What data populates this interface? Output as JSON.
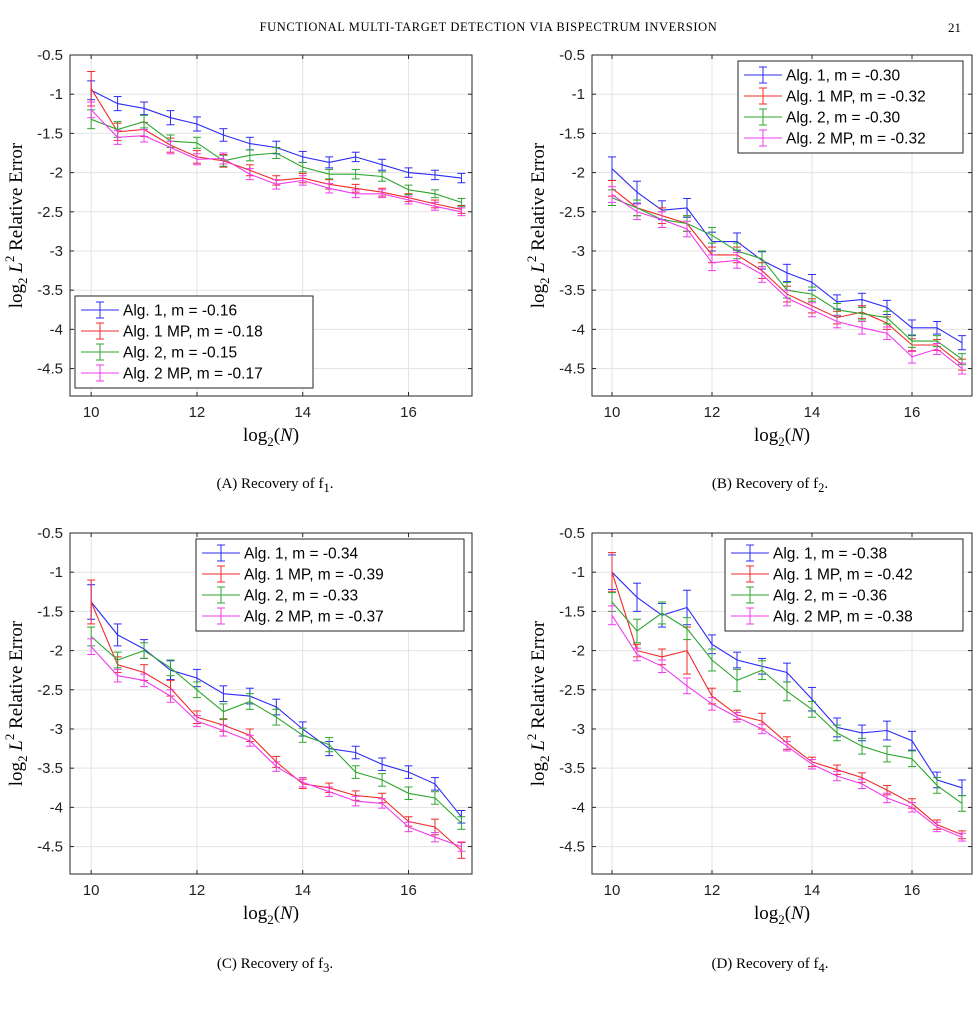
{
  "header": {
    "running_title": "FUNCTIONAL MULTI-TARGET DETECTION VIA BISPECTRUM INVERSION",
    "page_number": "21"
  },
  "colors": {
    "alg1": "#2b2bf5",
    "alg1_mp": "#f02a2a",
    "alg2": "#2ea62e",
    "alg2_mp": "#ee3cee"
  },
  "chart_data": [
    {
      "type": "line",
      "caption_letter": "(A)",
      "caption_text": "Recovery of f",
      "caption_sub": "1",
      "xlabel": "log2(N)",
      "ylabel": "log2 L2 Relative Error",
      "x": [
        10,
        10.5,
        11,
        11.5,
        12,
        12.5,
        13,
        13.5,
        14,
        14.5,
        15,
        15.5,
        16,
        16.5,
        17
      ],
      "xlim": [
        9.6,
        17.2
      ],
      "ylim": [
        -4.85,
        -0.5
      ],
      "xticks": [
        10,
        12,
        14,
        16
      ],
      "yticks": [
        -0.5,
        -1,
        -1.5,
        -2,
        -2.5,
        -3,
        -3.5,
        -4,
        -4.5
      ],
      "grid": true,
      "legend_position": "bottom-left",
      "series": [
        {
          "name": "Alg. 1,  m = -0.16",
          "color": "#2b2bf5",
          "values": [
            -0.95,
            -1.12,
            -1.18,
            -1.3,
            -1.38,
            -1.52,
            -1.63,
            -1.68,
            -1.8,
            -1.87,
            -1.8,
            -1.9,
            -2.0,
            -2.03,
            -2.07
          ],
          "errors": [
            0.12,
            0.09,
            0.08,
            0.09,
            0.09,
            0.08,
            0.08,
            0.08,
            0.07,
            0.07,
            0.06,
            0.07,
            0.06,
            0.06,
            0.06
          ]
        },
        {
          "name": "Alg. 1 MP,  m = -0.18",
          "color": "#f02a2a",
          "values": [
            -0.93,
            -1.48,
            -1.45,
            -1.65,
            -1.8,
            -1.85,
            -1.97,
            -2.1,
            -2.07,
            -2.15,
            -2.2,
            -2.25,
            -2.32,
            -2.4,
            -2.47
          ],
          "errors": [
            0.22,
            0.11,
            0.09,
            0.09,
            0.08,
            0.08,
            0.07,
            0.06,
            0.06,
            0.06,
            0.05,
            0.05,
            0.05,
            0.05,
            0.05
          ]
        },
        {
          "name": "Alg. 2,  m = -0.15",
          "color": "#2ea62e",
          "values": [
            -1.32,
            -1.45,
            -1.35,
            -1.6,
            -1.62,
            -1.85,
            -1.78,
            -1.75,
            -1.93,
            -2.02,
            -2.02,
            -2.05,
            -2.22,
            -2.27,
            -2.38
          ],
          "errors": [
            0.12,
            0.1,
            0.08,
            0.08,
            0.07,
            0.07,
            0.07,
            0.07,
            0.06,
            0.06,
            0.06,
            0.06,
            0.06,
            0.05,
            0.05
          ]
        },
        {
          "name": "Alg. 2 MP,  m = -0.17",
          "color": "#ee3cee",
          "values": [
            -1.2,
            -1.55,
            -1.53,
            -1.68,
            -1.83,
            -1.82,
            -2.02,
            -2.15,
            -2.1,
            -2.2,
            -2.27,
            -2.27,
            -2.35,
            -2.43,
            -2.5
          ],
          "errors": [
            0.1,
            0.09,
            0.08,
            0.08,
            0.07,
            0.07,
            0.07,
            0.06,
            0.06,
            0.06,
            0.05,
            0.05,
            0.05,
            0.05,
            0.05
          ]
        }
      ]
    },
    {
      "type": "line",
      "caption_letter": "(B)",
      "caption_text": "Recovery of f",
      "caption_sub": "2",
      "xlabel": "log2(N)",
      "ylabel": "log2 L2 Relative Error",
      "x": [
        10,
        10.5,
        11,
        11.5,
        12,
        12.5,
        13,
        13.5,
        14,
        14.5,
        15,
        15.5,
        16,
        16.5,
        17
      ],
      "xlim": [
        9.6,
        17.2
      ],
      "ylim": [
        -4.85,
        -0.5
      ],
      "xticks": [
        10,
        12,
        14,
        16
      ],
      "yticks": [
        -0.5,
        -1,
        -1.5,
        -2,
        -2.5,
        -3,
        -3.5,
        -4,
        -4.5
      ],
      "grid": true,
      "legend_position": "top-right",
      "series": [
        {
          "name": "Alg. 1,  m = -0.30",
          "color": "#2b2bf5",
          "values": [
            -1.95,
            -2.25,
            -2.48,
            -2.45,
            -2.88,
            -2.88,
            -3.12,
            -3.28,
            -3.4,
            -3.65,
            -3.62,
            -3.72,
            -3.98,
            -3.98,
            -4.17
          ],
          "errors": [
            0.15,
            0.14,
            0.12,
            0.12,
            0.12,
            0.11,
            0.11,
            0.11,
            0.1,
            0.09,
            0.08,
            0.09,
            0.1,
            0.08,
            0.09
          ]
        },
        {
          "name": "Alg. 1 MP,  m = -0.32",
          "color": "#f02a2a",
          "values": [
            -2.2,
            -2.45,
            -2.55,
            -2.65,
            -3.05,
            -3.05,
            -3.25,
            -3.55,
            -3.7,
            -3.85,
            -3.78,
            -3.92,
            -4.2,
            -4.2,
            -4.45
          ],
          "errors": [
            0.1,
            0.1,
            0.1,
            0.1,
            0.1,
            0.1,
            0.1,
            0.1,
            0.09,
            0.08,
            0.08,
            0.08,
            0.08,
            0.07,
            0.07
          ]
        },
        {
          "name": "Alg. 2,  m = -0.30",
          "color": "#2ea62e",
          "values": [
            -2.32,
            -2.45,
            -2.6,
            -2.65,
            -2.8,
            -3.0,
            -3.1,
            -3.5,
            -3.55,
            -3.75,
            -3.8,
            -3.85,
            -4.15,
            -4.15,
            -4.38
          ],
          "errors": [
            0.1,
            0.1,
            0.1,
            0.1,
            0.1,
            0.1,
            0.1,
            0.1,
            0.09,
            0.08,
            0.08,
            0.08,
            0.08,
            0.07,
            0.07
          ]
        },
        {
          "name": "Alg. 2 MP,  m = -0.32",
          "color": "#ee3cee",
          "values": [
            -2.28,
            -2.5,
            -2.6,
            -2.72,
            -3.15,
            -3.12,
            -3.3,
            -3.6,
            -3.75,
            -3.9,
            -3.98,
            -4.05,
            -4.35,
            -4.25,
            -4.5
          ],
          "errors": [
            0.1,
            0.1,
            0.1,
            0.1,
            0.1,
            0.1,
            0.1,
            0.1,
            0.09,
            0.08,
            0.08,
            0.08,
            0.08,
            0.07,
            0.07
          ]
        }
      ]
    },
    {
      "type": "line",
      "caption_letter": "(C)",
      "caption_text": "Recovery of f",
      "caption_sub": "3",
      "xlabel": "log2(N)",
      "ylabel": "log2 L2 Relative Error",
      "x": [
        10,
        10.5,
        11,
        11.5,
        12,
        12.5,
        13,
        13.5,
        14,
        14.5,
        15,
        15.5,
        16,
        16.5,
        17
      ],
      "xlim": [
        9.6,
        17.2
      ],
      "ylim": [
        -4.85,
        -0.5
      ],
      "xticks": [
        10,
        12,
        14,
        16
      ],
      "yticks": [
        -0.5,
        -1,
        -1.5,
        -2,
        -2.5,
        -3,
        -3.5,
        -4,
        -4.5
      ],
      "grid": true,
      "legend_position": "top-right",
      "series": [
        {
          "name": "Alg. 1,  m = -0.34",
          "color": "#2b2bf5",
          "values": [
            -1.38,
            -1.8,
            -1.98,
            -2.25,
            -2.35,
            -2.55,
            -2.58,
            -2.72,
            -3.0,
            -3.25,
            -3.3,
            -3.45,
            -3.55,
            -3.7,
            -4.12
          ],
          "errors": [
            0.22,
            0.14,
            0.12,
            0.12,
            0.11,
            0.1,
            0.1,
            0.1,
            0.09,
            0.09,
            0.08,
            0.08,
            0.08,
            0.08,
            0.08
          ]
        },
        {
          "name": "Alg. 1 MP,  m = -0.39",
          "color": "#f02a2a",
          "values": [
            -1.38,
            -2.18,
            -2.28,
            -2.48,
            -2.85,
            -2.95,
            -3.08,
            -3.42,
            -3.7,
            -3.75,
            -3.85,
            -3.88,
            -4.18,
            -4.25,
            -4.55
          ],
          "errors": [
            0.28,
            0.1,
            0.1,
            0.1,
            0.08,
            0.08,
            0.08,
            0.07,
            0.06,
            0.06,
            0.06,
            0.06,
            0.06,
            0.1,
            0.1
          ]
        },
        {
          "name": "Alg. 2,  m = -0.33",
          "color": "#2ea62e",
          "values": [
            -1.82,
            -2.12,
            -2.0,
            -2.22,
            -2.5,
            -2.78,
            -2.65,
            -2.85,
            -3.08,
            -3.2,
            -3.55,
            -3.65,
            -3.82,
            -3.88,
            -4.2
          ],
          "errors": [
            0.12,
            0.1,
            0.1,
            0.1,
            0.1,
            0.1,
            0.1,
            0.1,
            0.09,
            0.09,
            0.08,
            0.08,
            0.08,
            0.08,
            0.08
          ]
        },
        {
          "name": "Alg. 2 MP,  m = -0.37",
          "color": "#ee3cee",
          "values": [
            -1.95,
            -2.32,
            -2.38,
            -2.58,
            -2.9,
            -3.02,
            -3.15,
            -3.48,
            -3.68,
            -3.8,
            -3.92,
            -3.95,
            -4.25,
            -4.38,
            -4.5
          ],
          "errors": [
            0.1,
            0.08,
            0.08,
            0.08,
            0.07,
            0.07,
            0.07,
            0.06,
            0.06,
            0.06,
            0.06,
            0.06,
            0.06,
            0.06,
            0.06
          ]
        }
      ]
    },
    {
      "type": "line",
      "caption_letter": "(D)",
      "caption_text": "Recovery of f",
      "caption_sub": "4",
      "xlabel": "log2(N)",
      "ylabel": "log2 L2 Relative Error",
      "x": [
        10,
        10.5,
        11,
        11.5,
        12,
        12.5,
        13,
        13.5,
        14,
        14.5,
        15,
        15.5,
        16,
        16.5,
        17
      ],
      "xlim": [
        9.6,
        17.2
      ],
      "ylim": [
        -4.85,
        -0.5
      ],
      "xticks": [
        10,
        12,
        14,
        16
      ],
      "yticks": [
        -0.5,
        -1,
        -1.5,
        -2,
        -2.5,
        -3,
        -3.5,
        -4,
        -4.5
      ],
      "grid": true,
      "legend_position": "top-right",
      "series": [
        {
          "name": "Alg. 1,  m = -0.38",
          "color": "#2b2bf5",
          "values": [
            -1.0,
            -1.32,
            -1.55,
            -1.45,
            -1.92,
            -2.12,
            -2.2,
            -2.28,
            -2.62,
            -2.98,
            -3.05,
            -3.02,
            -3.15,
            -3.65,
            -3.75
          ],
          "errors": [
            0.22,
            0.18,
            0.15,
            0.22,
            0.12,
            0.1,
            0.1,
            0.12,
            0.15,
            0.12,
            0.1,
            0.12,
            0.12,
            0.1,
            0.1
          ]
        },
        {
          "name": "Alg. 1 MP,  m = -0.42",
          "color": "#f02a2a",
          "values": [
            -1.0,
            -2.0,
            -2.08,
            -2.0,
            -2.58,
            -2.82,
            -2.9,
            -3.18,
            -3.42,
            -3.52,
            -3.62,
            -3.78,
            -3.95,
            -4.22,
            -4.35
          ],
          "errors": [
            0.25,
            0.08,
            0.1,
            0.3,
            0.1,
            0.06,
            0.1,
            0.08,
            0.06,
            0.06,
            0.06,
            0.06,
            0.06,
            0.06,
            0.05
          ]
        },
        {
          "name": "Alg. 2,  m = -0.36",
          "color": "#2ea62e",
          "values": [
            -1.38,
            -1.75,
            -1.52,
            -1.72,
            -2.12,
            -2.38,
            -2.25,
            -2.52,
            -2.75,
            -3.05,
            -3.22,
            -3.32,
            -3.38,
            -3.72,
            -3.95
          ],
          "errors": [
            0.12,
            0.15,
            0.14,
            0.14,
            0.14,
            0.14,
            0.12,
            0.12,
            0.1,
            0.1,
            0.1,
            0.1,
            0.1,
            0.1,
            0.1
          ]
        },
        {
          "name": "Alg. 2 MP,  m = -0.38",
          "color": "#ee3cee",
          "values": [
            -1.55,
            -2.05,
            -2.2,
            -2.45,
            -2.68,
            -2.85,
            -3.0,
            -3.22,
            -3.45,
            -3.6,
            -3.7,
            -3.88,
            -4.0,
            -4.25,
            -4.38
          ],
          "errors": [
            0.12,
            0.08,
            0.08,
            0.1,
            0.08,
            0.06,
            0.06,
            0.06,
            0.06,
            0.06,
            0.06,
            0.06,
            0.06,
            0.06,
            0.05
          ]
        }
      ]
    }
  ]
}
